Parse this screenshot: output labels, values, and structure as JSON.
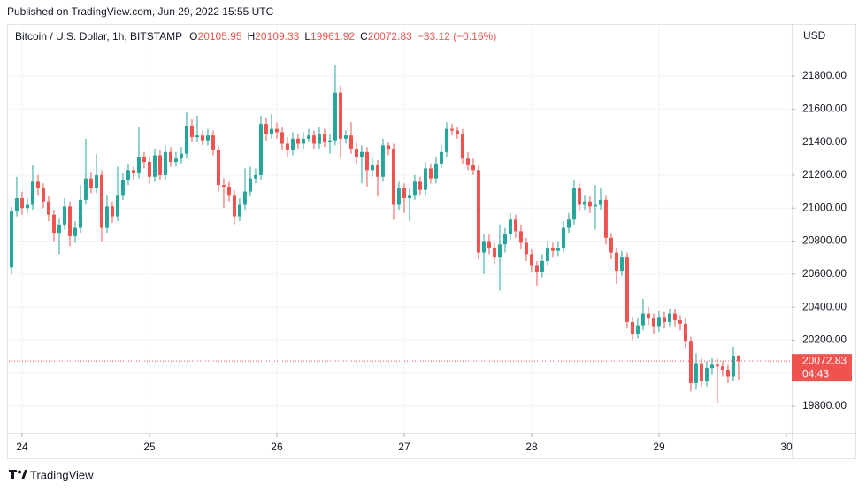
{
  "chart_data": {
    "type": "candlestick",
    "publisher": "Published on TradingView.com, Jun 29, 2022 15:55 UTC",
    "title": "Bitcoin / U.S. Dollar, 1h, BITSTAMP",
    "ohlc_labels": [
      "O",
      "H",
      "L",
      "C"
    ],
    "change_label": "−33.12 (−0.16%)",
    "currency": "USD",
    "countdown": "04:43",
    "brand": "TradingView",
    "up_color": "#26a69a",
    "down_color": "#ef5350",
    "grid": true,
    "xlim": [
      23.896,
      30.042
    ],
    "ylim": [
      19634,
      22111
    ],
    "xticks": [
      24,
      25,
      26,
      27,
      28,
      29,
      30
    ],
    "yticks": [
      {
        "value": 19800,
        "label": "19800.00"
      },
      {
        "value": 20000,
        "label": "20000.00"
      },
      {
        "value": 20200,
        "label": "20200.00"
      },
      {
        "value": 20400,
        "label": "20400.00"
      },
      {
        "value": 20600,
        "label": "20600.00"
      },
      {
        "value": 20800,
        "label": "20800.00"
      },
      {
        "value": 21000,
        "label": "21000.00"
      },
      {
        "value": 21200,
        "label": "21200.00"
      },
      {
        "value": 21400,
        "label": "21400.00"
      },
      {
        "value": 21600,
        "label": "21600.00"
      },
      {
        "value": 21800,
        "label": "21800.00"
      }
    ],
    "x": [
      23.9167,
      23.9583,
      24,
      24.0417,
      24.0833,
      24.125,
      24.1667,
      24.2083,
      24.25,
      24.2917,
      24.3333,
      24.375,
      24.4167,
      24.4583,
      24.5,
      24.5417,
      24.5833,
      24.625,
      24.6667,
      24.7083,
      24.75,
      24.7917,
      24.8333,
      24.875,
      24.9167,
      24.9583,
      25,
      25.0417,
      25.0833,
      25.125,
      25.1667,
      25.2083,
      25.25,
      25.2917,
      25.3333,
      25.375,
      25.4167,
      25.4583,
      25.5,
      25.5417,
      25.5833,
      25.625,
      25.6667,
      25.7083,
      25.75,
      25.7917,
      25.8333,
      25.875,
      25.9167,
      25.9583,
      26,
      26.0417,
      26.0833,
      26.125,
      26.1667,
      26.2083,
      26.25,
      26.2917,
      26.3333,
      26.375,
      26.4167,
      26.4583,
      26.5,
      26.5417,
      26.5833,
      26.625,
      26.6667,
      26.7083,
      26.75,
      26.7917,
      26.8333,
      26.875,
      26.9167,
      26.9583,
      27,
      27.0417,
      27.0833,
      27.125,
      27.1667,
      27.2083,
      27.25,
      27.2917,
      27.3333,
      27.375,
      27.4167,
      27.4583,
      27.5,
      27.5417,
      27.5833,
      27.625,
      27.6667,
      27.7083,
      27.75,
      27.7917,
      27.8333,
      27.875,
      27.9167,
      27.9583,
      28,
      28.0417,
      28.0833,
      28.125,
      28.1667,
      28.2083,
      28.25,
      28.2917,
      28.3333,
      28.375,
      28.4167,
      28.4583,
      28.5,
      28.5417,
      28.5833,
      28.625,
      28.6667,
      28.7083,
      28.75,
      28.7917,
      28.8333,
      28.875,
      28.9167,
      28.9583,
      29,
      29.0417,
      29.0833,
      29.125,
      29.1667,
      29.2083,
      29.25,
      29.2917,
      29.3333,
      29.375,
      29.4167,
      29.4583,
      29.5,
      29.5417,
      29.5833,
      29.625
    ],
    "open": [
      20640,
      20980,
      21060,
      21000,
      21020,
      21160,
      21120,
      21040,
      20960,
      20850,
      20900,
      21010,
      20830,
      20880,
      21050,
      21180,
      21120,
      21200,
      20880,
      21010,
      20950,
      21080,
      21170,
      21230,
      21210,
      21310,
      21280,
      21190,
      21320,
      21200,
      21340,
      21280,
      21300,
      21330,
      21500,
      21430,
      21440,
      21410,
      21440,
      21350,
      21140,
      21130,
      21080,
      20950,
      21020,
      21100,
      21180,
      21200,
      21510,
      21450,
      21480,
      21460,
      21390,
      21350,
      21420,
      21390,
      21420,
      21440,
      21390,
      21450,
      21400,
      21410,
      21700,
      21420,
      21440,
      21360,
      21310,
      21340,
      21230,
      21260,
      21190,
      21380,
      21360,
      21020,
      21120,
      21060,
      21080,
      21160,
      21110,
      21240,
      21180,
      21270,
      21340,
      21480,
      21470,
      21450,
      21300,
      21260,
      21230,
      20730,
      20800,
      20760,
      20700,
      20780,
      20840,
      20930,
      20860,
      20790,
      20720,
      20650,
      20610,
      20680,
      20760,
      20740,
      20760,
      20880,
      20930,
      21120,
      21020,
      21040,
      21010,
      21020,
      21050,
      20820,
      20730,
      20620,
      20700,
      20310,
      20240,
      20290,
      20360,
      20330,
      20280,
      20340,
      20310,
      20360,
      20320,
      20300,
      20190,
      19940,
      20060,
      19950,
      20030,
      20050,
      20040,
      20020,
      19980,
      20105.95
    ],
    "high": [
      21010,
      21190,
      21100,
      21060,
      21260,
      21200,
      21150,
      21070,
      20990,
      20940,
      21060,
      21040,
      20920,
      21140,
      21420,
      21220,
      21330,
      21230,
      21080,
      21040,
      21250,
      21210,
      21270,
      21250,
      21490,
      21340,
      21310,
      21360,
      21350,
      21380,
      21370,
      21340,
      21370,
      21580,
      21540,
      21560,
      21470,
      21480,
      21470,
      21380,
      21180,
      21160,
      21110,
      21060,
      21240,
      21250,
      21240,
      21560,
      21550,
      21570,
      21520,
      21490,
      21430,
      21460,
      21450,
      21460,
      21480,
      21470,
      21490,
      21480,
      21450,
      21870,
      21740,
      21470,
      21520,
      21400,
      21380,
      21370,
      21300,
      21290,
      21420,
      21400,
      21390,
      21160,
      21150,
      21120,
      21200,
      21190,
      21280,
      21270,
      21310,
      21380,
      21520,
      21510,
      21490,
      21480,
      21340,
      21300,
      21260,
      20840,
      20840,
      20790,
      20900,
      20880,
      20970,
      20960,
      20900,
      20820,
      20750,
      20680,
      20720,
      20800,
      20790,
      20800,
      20920,
      20970,
      21170,
      21150,
      21080,
      21070,
      21140,
      21120,
      21080,
      20850,
      20760,
      20740,
      20730,
      20340,
      20330,
      20450,
      20400,
      20360,
      20380,
      20370,
      20390,
      20390,
      20350,
      20330,
      20220,
      20120,
      20090,
      20070,
      20090,
      20090,
      20070,
      20050,
      20160,
      20109.33
    ],
    "low": [
      20600,
      20950,
      20960,
      20970,
      20990,
      21080,
      21000,
      20920,
      20800,
      20720,
      20870,
      20770,
      20790,
      20850,
      21020,
      21090,
      21090,
      20800,
      20850,
      20910,
      20920,
      21050,
      21140,
      21170,
      21180,
      21240,
      21150,
      21160,
      21170,
      21170,
      21250,
      21250,
      21270,
      21300,
      21400,
      21400,
      21380,
      21380,
      21320,
      21100,
      21000,
      21040,
      20900,
      20920,
      20990,
      21070,
      21150,
      21170,
      21410,
      21420,
      21420,
      21350,
      21310,
      21320,
      21360,
      21360,
      21400,
      21360,
      21360,
      21370,
      21330,
      21380,
      21300,
      21390,
      21330,
      21270,
      21150,
      21130,
      21190,
      21070,
      21160,
      21320,
      20930,
      20990,
      20970,
      20920,
      21050,
      21080,
      21080,
      21150,
      21150,
      21240,
      21310,
      21440,
      21420,
      21270,
      21230,
      21200,
      20690,
      20600,
      20720,
      20660,
      20500,
      20730,
      20810,
      20820,
      20750,
      20680,
      20610,
      20530,
      20580,
      20650,
      20700,
      20710,
      20730,
      20850,
      20900,
      20980,
      20990,
      20970,
      20870,
      20990,
      20780,
      20690,
      20540,
      20590,
      20270,
      20200,
      20210,
      20260,
      20290,
      20240,
      20250,
      20270,
      20280,
      20280,
      20260,
      20150,
      19890,
      19900,
      19910,
      19920,
      19990,
      19820,
      19980,
      19940,
      19950,
      19961.92
    ],
    "close": [
      20980,
      21060,
      21000,
      21020,
      21160,
      21120,
      21040,
      20960,
      20850,
      20900,
      21010,
      20830,
      20880,
      21050,
      21180,
      21120,
      21200,
      20880,
      21010,
      20950,
      21080,
      21170,
      21230,
      21210,
      21310,
      21280,
      21190,
      21320,
      21200,
      21340,
      21280,
      21300,
      21330,
      21500,
      21430,
      21440,
      21410,
      21440,
      21350,
      21140,
      21130,
      21080,
      20950,
      21020,
      21100,
      21180,
      21200,
      21510,
      21450,
      21480,
      21460,
      21390,
      21350,
      21420,
      21390,
      21420,
      21440,
      21390,
      21450,
      21400,
      21410,
      21700,
      21420,
      21440,
      21360,
      21310,
      21340,
      21230,
      21260,
      21190,
      21380,
      21360,
      21020,
      21120,
      21060,
      21080,
      21160,
      21110,
      21240,
      21180,
      21270,
      21340,
      21480,
      21470,
      21450,
      21300,
      21260,
      21230,
      20730,
      20800,
      20760,
      20700,
      20780,
      20840,
      20930,
      20860,
      20790,
      20720,
      20650,
      20610,
      20680,
      20760,
      20740,
      20760,
      20880,
      20930,
      21120,
      21020,
      21040,
      21010,
      21020,
      21050,
      20820,
      20730,
      20620,
      20700,
      20310,
      20240,
      20290,
      20360,
      20330,
      20280,
      20340,
      20310,
      20360,
      20320,
      20300,
      20190,
      19940,
      20060,
      19950,
      20030,
      20050,
      20040,
      20020,
      19980,
      20105.95,
      20072.83
    ]
  }
}
